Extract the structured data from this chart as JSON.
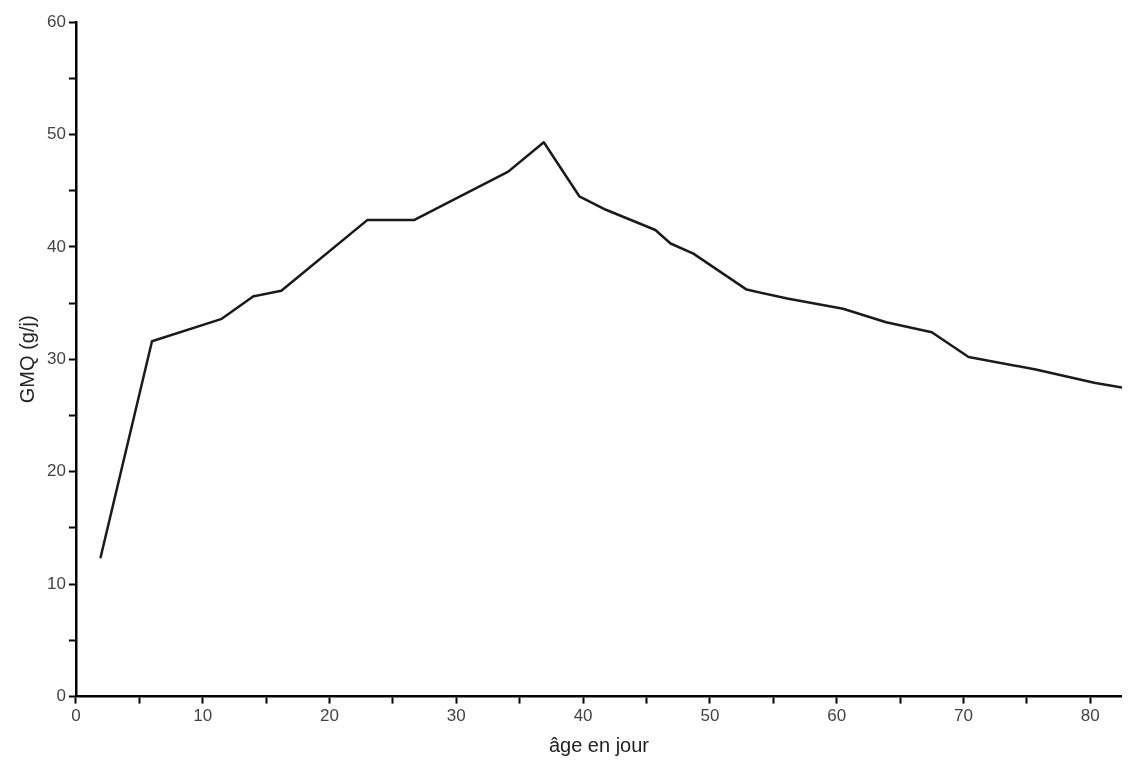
{
  "chart_data": {
    "type": "line",
    "xlabel": "âge en jour",
    "ylabel": "GMQ (g/j)",
    "x": [
      1.95,
      6.0,
      11.5,
      14.0,
      16.2,
      23.0,
      26.7,
      29.8,
      34.1,
      36.9,
      39.7,
      41.8,
      45.7,
      46.9,
      48.7,
      52.9,
      56.1,
      60.5,
      63.9,
      67.5,
      70.4,
      75.7,
      80.4,
      82.5
    ],
    "series": [
      {
        "color": "#1a1a1a",
        "values": [
          12.4,
          31.6,
          33.6,
          35.6,
          36.1,
          42.4,
          42.4,
          44.2,
          46.7,
          49.3,
          44.5,
          43.3,
          41.5,
          40.3,
          39.4,
          36.2,
          35.4,
          34.5,
          33.3,
          32.4,
          30.2,
          29.1,
          27.9,
          27.5
        ]
      }
    ],
    "xlim": [
      0,
      82.5
    ],
    "xticks": [
      0,
      {
        "value": 5,
        "label": null
      },
      10,
      {
        "value": 15,
        "label": null
      },
      20,
      {
        "value": 25,
        "label": null
      },
      30,
      {
        "value": 35,
        "label": null
      },
      40,
      {
        "value": 45,
        "label": null
      },
      50,
      {
        "value": 55,
        "label": null
      },
      60,
      {
        "value": 65,
        "label": null
      },
      70,
      {
        "value": 75,
        "label": null
      },
      80
    ],
    "ylim": [
      0,
      60
    ],
    "yticks": [
      0,
      {
        "value": 5,
        "label": null
      },
      10,
      {
        "value": 15,
        "label": null
      },
      20,
      {
        "value": 25,
        "label": null
      },
      30,
      {
        "value": 35,
        "label": null
      },
      40,
      {
        "value": 45,
        "label": null
      },
      50,
      {
        "value": 55,
        "label": null
      },
      60
    ],
    "grid": false,
    "legend": false,
    "marker": "none",
    "line_style": "solid"
  }
}
